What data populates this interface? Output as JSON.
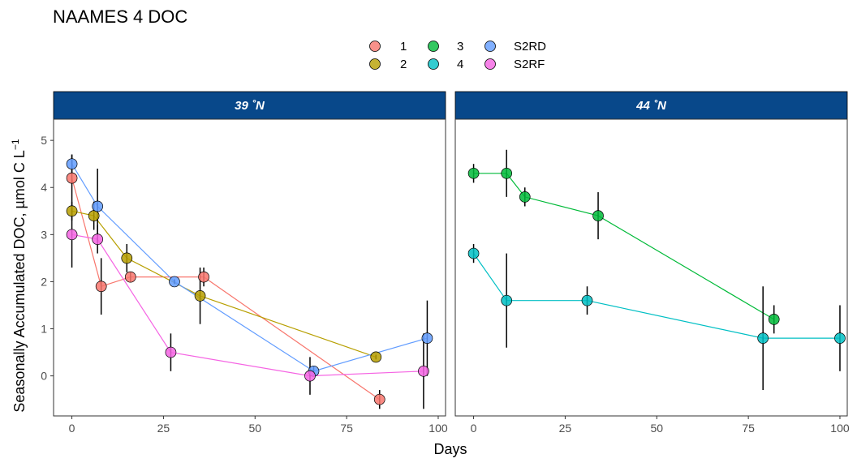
{
  "chart_data": {
    "type": "line",
    "title": "NAAMES 4 DOC",
    "xlabel": "Days",
    "ylabel": "Seasonally Accumulated DOC, µmol C L",
    "ylabel_sup": "−1",
    "xlim": [
      -5,
      102
    ],
    "ylim": [
      -0.85,
      5.45
    ],
    "x_ticks": [
      0,
      25,
      50,
      75,
      100
    ],
    "y_ticks": [
      0,
      1,
      2,
      3,
      4,
      5
    ],
    "grid": false,
    "legend_position": "top",
    "legend": [
      {
        "label": "1",
        "color": "#F8766D"
      },
      {
        "label": "2",
        "color": "#B79F00"
      },
      {
        "label": "3",
        "color": "#00BA38"
      },
      {
        "label": "4",
        "color": "#00BFC4"
      },
      {
        "label": "S2RD",
        "color": "#619CFF"
      },
      {
        "label": "S2RF",
        "color": "#F564E3"
      }
    ],
    "panels": [
      {
        "strip_label": "39 ˚N",
        "strip_color": "#08488A",
        "series": [
          {
            "name": "1",
            "color": "#F8766D",
            "points": [
              {
                "x": 0,
                "y": 4.2,
                "err": 0.5
              },
              {
                "x": 8,
                "y": 1.9,
                "err": 0.6
              },
              {
                "x": 16,
                "y": 2.1,
                "err": 0.1
              },
              {
                "x": 36,
                "y": 2.1,
                "err": 0.2
              },
              {
                "x": 84,
                "y": -0.5,
                "err": 0.2
              }
            ]
          },
          {
            "name": "2",
            "color": "#B79F00",
            "points": [
              {
                "x": 0,
                "y": 3.5,
                "err": 0.2
              },
              {
                "x": 6,
                "y": 3.4,
                "err": 0.3
              },
              {
                "x": 15,
                "y": 2.5,
                "err": 0.3
              },
              {
                "x": 35,
                "y": 1.7,
                "err": 0.6
              },
              {
                "x": 83,
                "y": 0.4,
                "err": 0.05
              }
            ]
          },
          {
            "name": "S2RD",
            "color": "#619CFF",
            "points": [
              {
                "x": 0,
                "y": 4.5,
                "err": 0.2
              },
              {
                "x": 7,
                "y": 3.6,
                "err": 0.8
              },
              {
                "x": 28,
                "y": 2.0,
                "err": 0.05
              },
              {
                "x": 66,
                "y": 0.1,
                "err": 0.1
              },
              {
                "x": 97,
                "y": 0.8,
                "err": 0.8
              }
            ]
          },
          {
            "name": "S2RF",
            "color": "#F564E3",
            "points": [
              {
                "x": 0,
                "y": 3.0,
                "err": 0.7
              },
              {
                "x": 7,
                "y": 2.9,
                "err": 0.3
              },
              {
                "x": 27,
                "y": 0.5,
                "err": 0.4
              },
              {
                "x": 65,
                "y": 0.0,
                "err": 0.4
              },
              {
                "x": 96,
                "y": 0.1,
                "err": 0.8
              }
            ]
          }
        ]
      },
      {
        "strip_label": "44 ˚N",
        "strip_color": "#08488A",
        "series": [
          {
            "name": "3",
            "color": "#00BA38",
            "points": [
              {
                "x": 0,
                "y": 4.3,
                "err": 0.2
              },
              {
                "x": 9,
                "y": 4.3,
                "err": 0.5
              },
              {
                "x": 14,
                "y": 3.8,
                "err": 0.2
              },
              {
                "x": 34,
                "y": 3.4,
                "err": 0.5
              },
              {
                "x": 82,
                "y": 1.2,
                "err": 0.3
              }
            ]
          },
          {
            "name": "4",
            "color": "#00BFC4",
            "points": [
              {
                "x": 0,
                "y": 2.6,
                "err": 0.2
              },
              {
                "x": 9,
                "y": 1.6,
                "err": 1.0
              },
              {
                "x": 31,
                "y": 1.6,
                "err": 0.3
              },
              {
                "x": 79,
                "y": 0.8,
                "err": 1.1
              },
              {
                "x": 100,
                "y": 0.8,
                "err": 0.7
              }
            ]
          }
        ]
      }
    ]
  }
}
